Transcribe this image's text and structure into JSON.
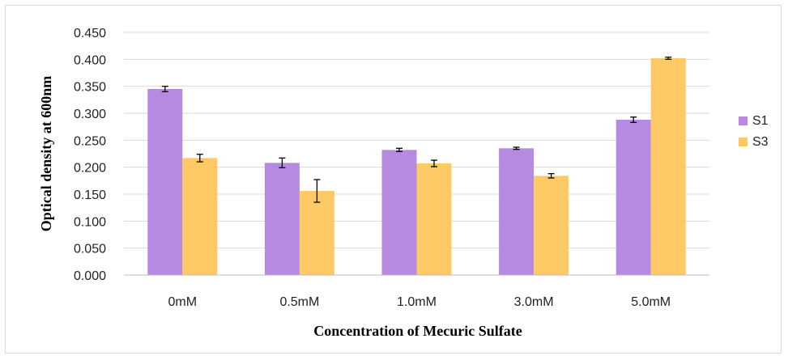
{
  "chart_data": {
    "type": "bar",
    "title": "",
    "xlabel": "Concentration of Mecuric Sulfate",
    "ylabel": "Optical density at 600nm",
    "categories": [
      "0mM",
      "0.5mM",
      "1.0mM",
      "3.0mM",
      "5.0mM"
    ],
    "ylim": [
      0,
      0.45
    ],
    "yticks": [
      "0.000",
      "0.050",
      "0.100",
      "0.150",
      "0.200",
      "0.250",
      "0.300",
      "0.350",
      "0.400",
      "0.450"
    ],
    "grid": true,
    "legend_position": "right",
    "series": [
      {
        "name": "S1",
        "color": "#b68ae0",
        "values": [
          0.345,
          0.208,
          0.232,
          0.235,
          0.288
        ],
        "errors": [
          0.005,
          0.009,
          0.003,
          0.002,
          0.005
        ]
      },
      {
        "name": "S3",
        "color": "#ffca66",
        "values": [
          0.217,
          0.156,
          0.207,
          0.184,
          0.402
        ],
        "errors": [
          0.007,
          0.021,
          0.006,
          0.004,
          0.002
        ]
      }
    ]
  }
}
